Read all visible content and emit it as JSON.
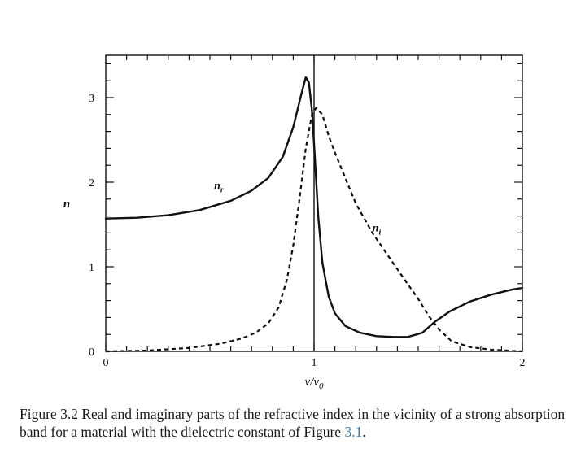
{
  "chart_data": {
    "type": "line",
    "xlabel": "ν/ν",
    "xlabel_sub": "0",
    "ylabel": "n",
    "xlim": [
      0,
      2
    ],
    "ylim": [
      0,
      3.5
    ],
    "x_ticks": [
      0,
      1,
      2
    ],
    "x_tick_labels": [
      "0",
      "1",
      "2"
    ],
    "y_ticks": [
      0,
      1,
      2,
      3
    ],
    "y_tick_labels": [
      "0",
      "1",
      "2",
      "3"
    ],
    "vertical_line_x": 1,
    "grid": false,
    "series": [
      {
        "name": "n_r",
        "label_main": "n",
        "label_sub": "r",
        "style": "solid",
        "points": [
          [
            0.0,
            1.57
          ],
          [
            0.15,
            1.58
          ],
          [
            0.3,
            1.61
          ],
          [
            0.45,
            1.67
          ],
          [
            0.6,
            1.78
          ],
          [
            0.7,
            1.9
          ],
          [
            0.78,
            2.05
          ],
          [
            0.85,
            2.3
          ],
          [
            0.9,
            2.65
          ],
          [
            0.94,
            3.05
          ],
          [
            0.96,
            3.24
          ],
          [
            0.975,
            3.18
          ],
          [
            0.99,
            2.85
          ],
          [
            1.0,
            2.45
          ],
          [
            1.02,
            1.6
          ],
          [
            1.04,
            1.05
          ],
          [
            1.07,
            0.65
          ],
          [
            1.1,
            0.45
          ],
          [
            1.15,
            0.3
          ],
          [
            1.22,
            0.22
          ],
          [
            1.3,
            0.18
          ],
          [
            1.38,
            0.17
          ],
          [
            1.45,
            0.17
          ],
          [
            1.52,
            0.22
          ],
          [
            1.58,
            0.35
          ],
          [
            1.65,
            0.47
          ],
          [
            1.75,
            0.59
          ],
          [
            1.85,
            0.67
          ],
          [
            1.95,
            0.73
          ],
          [
            2.0,
            0.75
          ]
        ]
      },
      {
        "name": "n_i",
        "label_main": "n",
        "label_sub": "i",
        "style": "dashed",
        "points": [
          [
            0.0,
            0.0
          ],
          [
            0.2,
            0.01
          ],
          [
            0.4,
            0.04
          ],
          [
            0.55,
            0.09
          ],
          [
            0.65,
            0.15
          ],
          [
            0.72,
            0.22
          ],
          [
            0.78,
            0.33
          ],
          [
            0.83,
            0.52
          ],
          [
            0.87,
            0.85
          ],
          [
            0.9,
            1.25
          ],
          [
            0.93,
            1.8
          ],
          [
            0.96,
            2.4
          ],
          [
            0.99,
            2.8
          ],
          [
            1.01,
            2.88
          ],
          [
            1.04,
            2.8
          ],
          [
            1.07,
            2.55
          ],
          [
            1.1,
            2.35
          ],
          [
            1.15,
            2.05
          ],
          [
            1.2,
            1.75
          ],
          [
            1.28,
            1.4
          ],
          [
            1.35,
            1.15
          ],
          [
            1.42,
            0.9
          ],
          [
            1.5,
            0.62
          ],
          [
            1.55,
            0.42
          ],
          [
            1.6,
            0.26
          ],
          [
            1.66,
            0.12
          ],
          [
            1.75,
            0.05
          ],
          [
            1.85,
            0.02
          ],
          [
            2.0,
            0.0
          ]
        ]
      }
    ],
    "series_label_positions": [
      {
        "series": "n_r",
        "x": 0.52,
        "y": 1.92
      },
      {
        "series": "n_i",
        "x": 1.28,
        "y": 1.42
      }
    ]
  },
  "caption": {
    "prefix": "Figure 3.2 Real and imaginary parts of the refractive index in the vicinity of a strong absorption band for a material with the dielectric constant of Figure ",
    "ref": "3.1",
    "suffix": "."
  }
}
